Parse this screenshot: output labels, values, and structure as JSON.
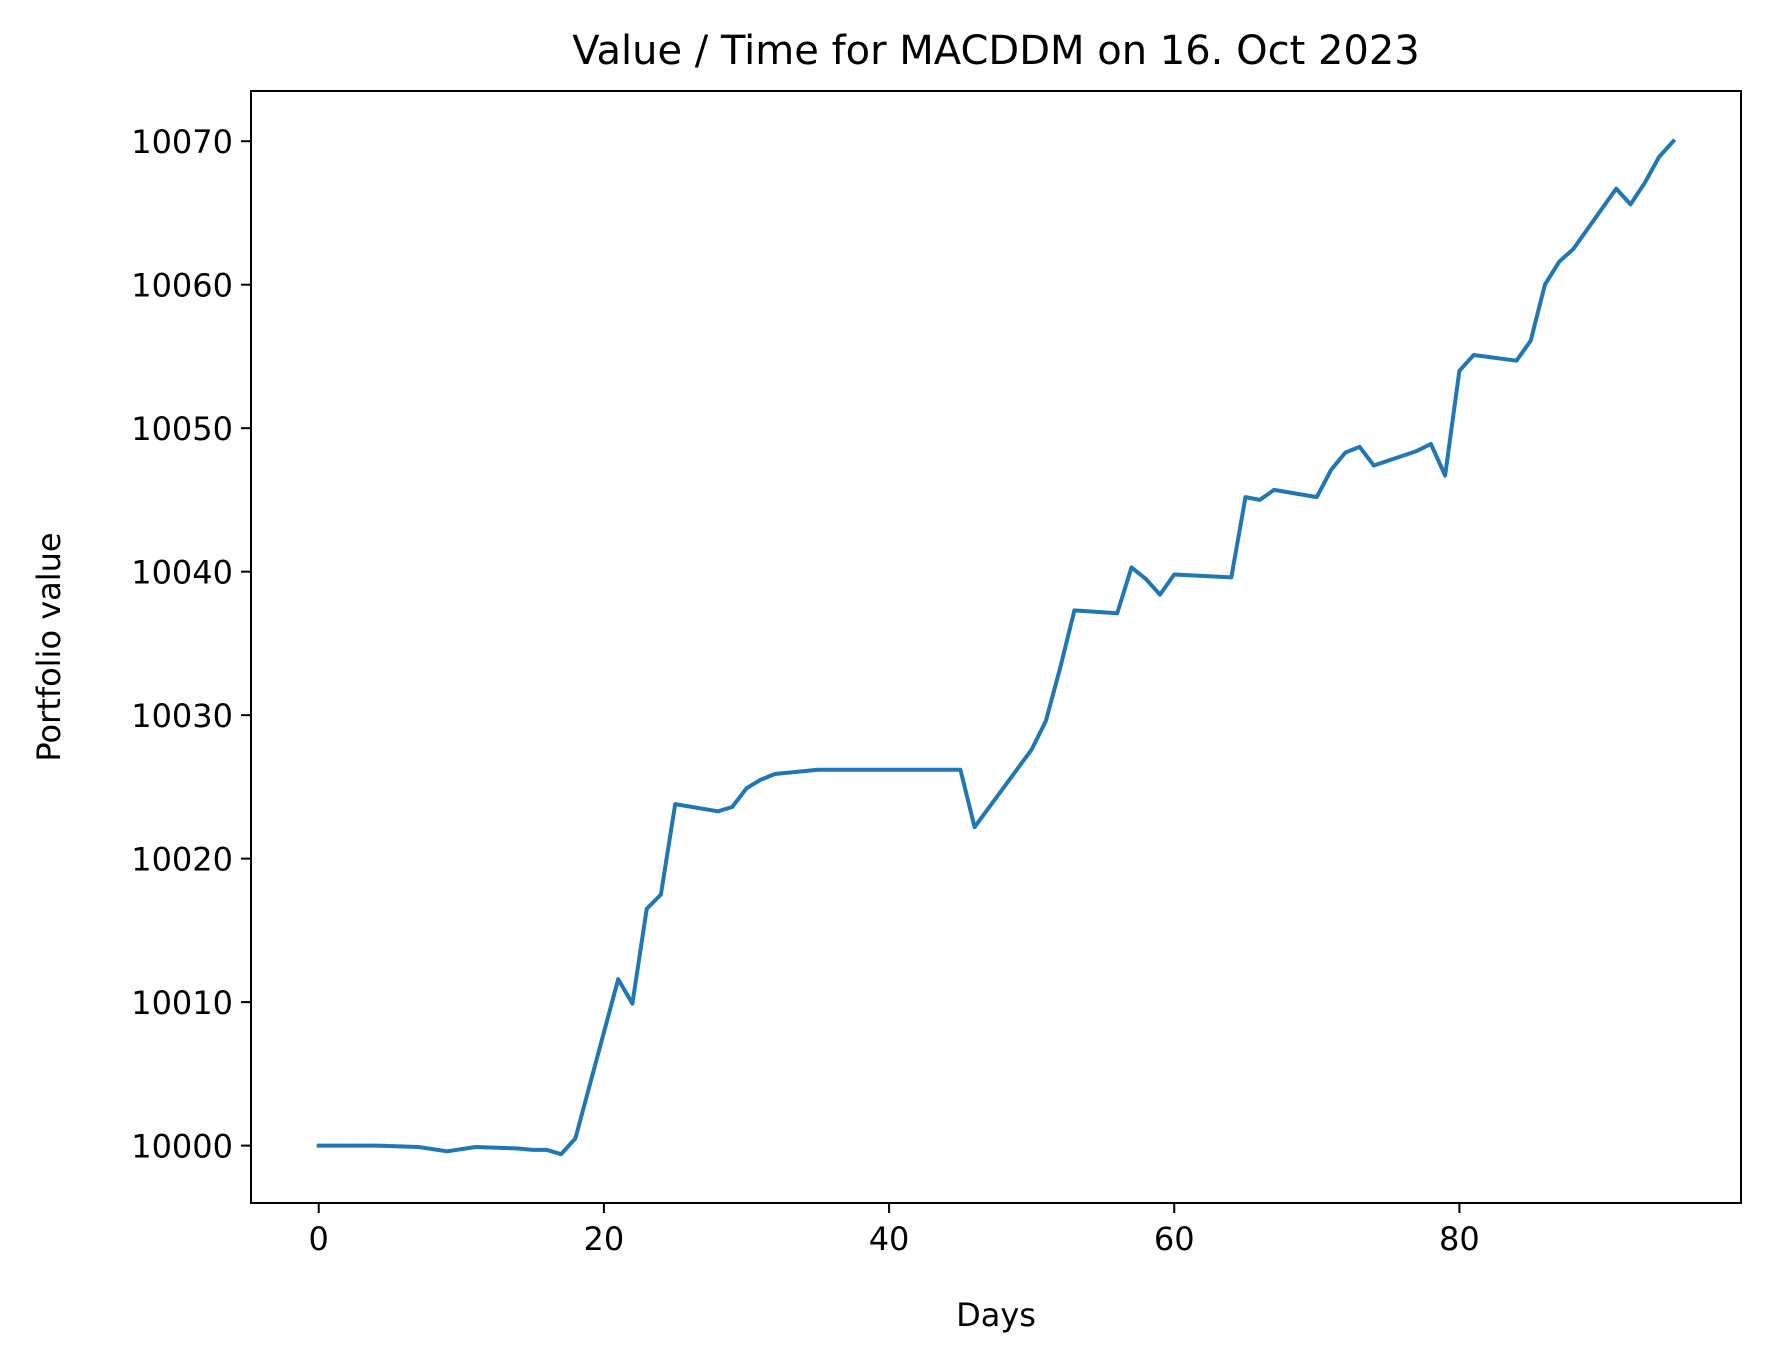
{
  "chart_data": {
    "type": "line",
    "title": "Value / Time for MACDDM on 16. Oct 2023",
    "xlabel": "Days",
    "ylabel": "Portfolio value",
    "xlim": [
      -4.75,
      99.75
    ],
    "ylim": [
      9996.0,
      10073.5
    ],
    "xticks": [
      0,
      20,
      40,
      60,
      80
    ],
    "xtick_labels": [
      "0",
      "20",
      "40",
      "60",
      "80"
    ],
    "yticks": [
      10000,
      10010,
      10020,
      10030,
      10040,
      10050,
      10060,
      10070
    ],
    "ytick_labels": [
      "10000",
      "10010",
      "10020",
      "10030",
      "10040",
      "10050",
      "10060",
      "10070"
    ],
    "grid": false,
    "colors": {
      "line": "#1f77b4",
      "axes": "#000000",
      "background": "#ffffff"
    },
    "series": [
      {
        "x": [
          0,
          4,
          7,
          9,
          11,
          14,
          15,
          16,
          17,
          18,
          21,
          22,
          23,
          24,
          25,
          28,
          29,
          30,
          31,
          32,
          35,
          45,
          46,
          50,
          51,
          52,
          53,
          56,
          57,
          58,
          59,
          60,
          64,
          65,
          66,
          67,
          70,
          71,
          72,
          73,
          74,
          77,
          78,
          79,
          80,
          81,
          84,
          85,
          86,
          87,
          88,
          91,
          92,
          93,
          94,
          95
        ],
        "y": [
          10000.0,
          10000.0,
          9999.9,
          9999.6,
          9999.9,
          9999.8,
          9999.7,
          9999.7,
          9999.4,
          10000.5,
          10011.6,
          10009.9,
          10016.5,
          10017.5,
          10023.8,
          10023.3,
          10023.6,
          10024.9,
          10025.5,
          10025.9,
          10026.2,
          10026.2,
          10022.2,
          10027.6,
          10029.6,
          10033.3,
          10037.3,
          10037.1,
          10040.3,
          10039.5,
          10038.4,
          10039.8,
          10039.6,
          10045.2,
          10045.0,
          10045.7,
          10045.2,
          10047.1,
          10048.3,
          10048.7,
          10047.4,
          10048.4,
          10048.9,
          10046.7,
          10054.0,
          10055.1,
          10054.7,
          10056.1,
          10060.0,
          10061.6,
          10062.5,
          10066.7,
          10065.6,
          10067.1,
          10068.9,
          10070.0
        ]
      }
    ]
  }
}
